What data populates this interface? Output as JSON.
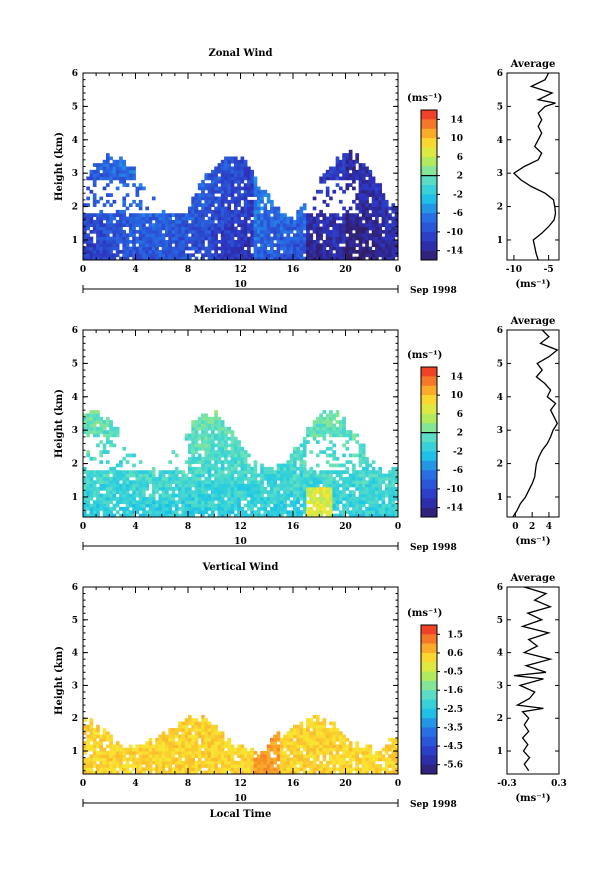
{
  "chart_data": [
    {
      "type": "heatmap",
      "title": "Zonal Wind",
      "ylabel": "Height (km)",
      "xlabel": "",
      "x_ticks": [
        "0",
        "4",
        "8",
        "12",
        "16",
        "20",
        "0"
      ],
      "y_ticks": [
        "1",
        "2",
        "3",
        "4",
        "5",
        "6"
      ],
      "xlim": [
        0,
        24
      ],
      "ylim": [
        0.4,
        6.0
      ],
      "data_top_km": 3.5,
      "date_day": "10",
      "date_label": "Sep 1998",
      "colorbar": {
        "unit": "(ms⁻¹)",
        "ticks": [
          "14",
          "10",
          "6",
          "2",
          "-2",
          "-6",
          "-10",
          "-14"
        ],
        "range": [
          -16,
          16
        ],
        "zero_line": 2
      },
      "average_profile": {
        "title": "Average",
        "x_ticks": [
          "-10",
          "-5"
        ],
        "xlim": [
          -11,
          -3.5
        ],
        "xunit": "(ms⁻¹)",
        "y_ticks": [
          "1",
          "2",
          "3",
          "4",
          "5",
          "6"
        ],
        "height_km": [
          0.4,
          0.6,
          0.8,
          1.0,
          1.2,
          1.4,
          1.6,
          1.8,
          2.0,
          2.2,
          2.4,
          2.6,
          2.8,
          3.0,
          3.2,
          3.4,
          3.6,
          3.8,
          4.0,
          4.2,
          4.4,
          4.6,
          4.8,
          5.0,
          5.1,
          5.2,
          5.4,
          5.6,
          5.8,
          6.0
        ],
        "value": [
          -6.5,
          -6.8,
          -7.0,
          -7.2,
          -6.0,
          -5.0,
          -4.2,
          -4.0,
          -4.1,
          -4.3,
          -5.5,
          -7.5,
          -9.0,
          -10.0,
          -8.5,
          -6.5,
          -6.0,
          -7.0,
          -6.5,
          -6.0,
          -6.5,
          -6.0,
          -6.5,
          -5.5,
          -4.0,
          -6.5,
          -4.5,
          -7.5,
          -5.5,
          -5.0
        ]
      }
    },
    {
      "type": "heatmap",
      "title": "Meridional Wind",
      "ylabel": "Height (km)",
      "xlabel": "",
      "x_ticks": [
        "0",
        "4",
        "8",
        "12",
        "16",
        "20",
        "0"
      ],
      "y_ticks": [
        "1",
        "2",
        "3",
        "4",
        "5",
        "6"
      ],
      "xlim": [
        0,
        24
      ],
      "ylim": [
        0.4,
        6.0
      ],
      "data_top_km": 3.5,
      "date_day": "10",
      "date_label": "Sep 1998",
      "colorbar": {
        "unit": "(ms⁻¹)",
        "ticks": [
          "14",
          "10",
          "6",
          "2",
          "-2",
          "-6",
          "-10",
          "-14"
        ],
        "range": [
          -16,
          16
        ],
        "zero_line": 2
      },
      "average_profile": {
        "title": "Average",
        "x_ticks": [
          "0",
          "2",
          "4"
        ],
        "xlim": [
          -1,
          5.2
        ],
        "xunit": "(ms⁻¹)",
        "y_ticks": [
          "1",
          "2",
          "3",
          "4",
          "5",
          "6"
        ],
        "height_km": [
          0.4,
          0.6,
          0.8,
          1.0,
          1.2,
          1.4,
          1.6,
          1.8,
          2.0,
          2.2,
          2.4,
          2.6,
          2.8,
          3.0,
          3.2,
          3.4,
          3.6,
          3.8,
          4.0,
          4.2,
          4.4,
          4.6,
          4.8,
          5.0,
          5.2,
          5.4,
          5.6,
          5.8,
          6.0
        ],
        "value": [
          -0.3,
          0.2,
          0.6,
          1.2,
          1.6,
          2.0,
          2.3,
          2.4,
          2.5,
          2.8,
          3.2,
          3.8,
          4.2,
          4.5,
          5.0,
          4.6,
          4.2,
          4.8,
          3.8,
          4.2,
          3.5,
          2.5,
          3.2,
          2.6,
          4.0,
          5.0,
          3.0,
          4.0,
          3.2
        ]
      }
    },
    {
      "type": "heatmap",
      "title": "Vertical Wind",
      "ylabel": "Height (km)",
      "xlabel": "Local Time",
      "x_ticks": [
        "0",
        "4",
        "8",
        "12",
        "16",
        "20",
        "0"
      ],
      "y_ticks": [
        "1",
        "2",
        "3",
        "4",
        "5",
        "6"
      ],
      "xlim": [
        0,
        24
      ],
      "ylim": [
        0.3,
        6.0
      ],
      "data_top_km": 2.0,
      "date_day": "10",
      "date_label": "Sep 1998",
      "colorbar": {
        "unit": "(ms⁻¹)",
        "ticks": [
          "1.5",
          "0.6",
          "-0.5",
          "-1.6",
          "-2.5",
          "-3.5",
          "-4.5",
          "-5.6"
        ],
        "range": [
          -6.0,
          2.0
        ],
        "zero_line": null
      },
      "average_profile": {
        "title": "Average",
        "x_ticks": [
          "-0.3",
          "0.3"
        ],
        "xlim": [
          -0.3,
          0.3
        ],
        "xunit": "(ms⁻¹)",
        "y_ticks": [
          "1",
          "2",
          "3",
          "4",
          "5",
          "6"
        ],
        "height_km": [
          0.4,
          0.6,
          0.8,
          1.0,
          1.2,
          1.4,
          1.6,
          1.8,
          2.0,
          2.2,
          2.3,
          2.4,
          2.6,
          2.8,
          3.0,
          3.2,
          3.3,
          3.4,
          3.6,
          3.8,
          4.0,
          4.2,
          4.4,
          4.6,
          4.8,
          5.0,
          5.2,
          5.4,
          5.6,
          5.8,
          6.0
        ],
        "value": [
          -0.05,
          -0.1,
          -0.04,
          -0.11,
          -0.06,
          -0.12,
          -0.05,
          -0.1,
          -0.05,
          -0.12,
          0.12,
          -0.18,
          -0.04,
          0.02,
          -0.15,
          0.12,
          -0.22,
          0.15,
          -0.08,
          0.2,
          -0.1,
          0.05,
          -0.05,
          0.18,
          -0.12,
          0.1,
          -0.06,
          0.2,
          0.02,
          0.15,
          -0.1
        ]
      }
    }
  ]
}
